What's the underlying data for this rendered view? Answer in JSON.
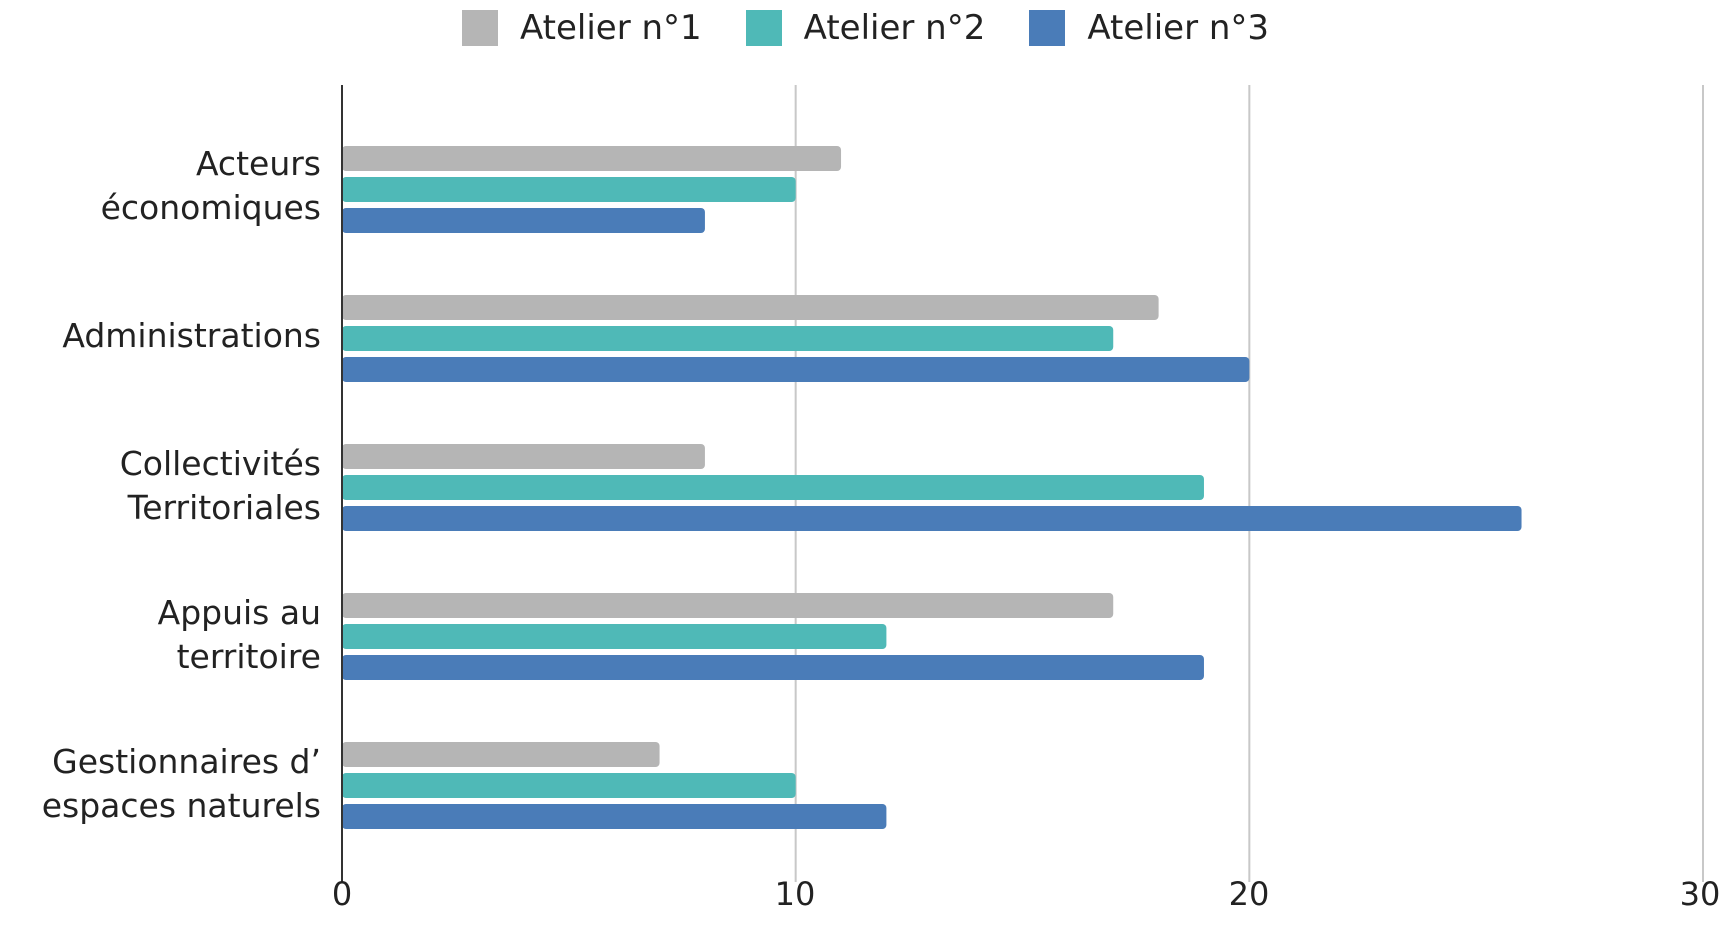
{
  "chart_data": {
    "type": "bar",
    "orientation": "horizontal",
    "categories": [
      "Acteurs\néconomiques",
      "Administrations",
      "Collectivités\nTerritoriales",
      "Appuis au\nterritoire",
      "Gestionnaires d’\nespaces naturels"
    ],
    "series": [
      {
        "name": "Atelier n°1",
        "color": "#b5b5b5",
        "values": [
          11,
          18,
          8,
          17,
          7
        ]
      },
      {
        "name": "Atelier n°2",
        "color": "#4fb9b7",
        "values": [
          10,
          17,
          19,
          12,
          10
        ]
      },
      {
        "name": "Atelier n°3",
        "color": "#4a7cb8",
        "values": [
          8,
          20,
          26,
          19,
          12
        ]
      }
    ],
    "xlim": [
      0,
      30
    ],
    "xticks": [
      "0",
      "10",
      "20",
      "30"
    ],
    "grid": "vertical",
    "legend_position": "top",
    "title": "",
    "xlabel": "",
    "ylabel": ""
  }
}
